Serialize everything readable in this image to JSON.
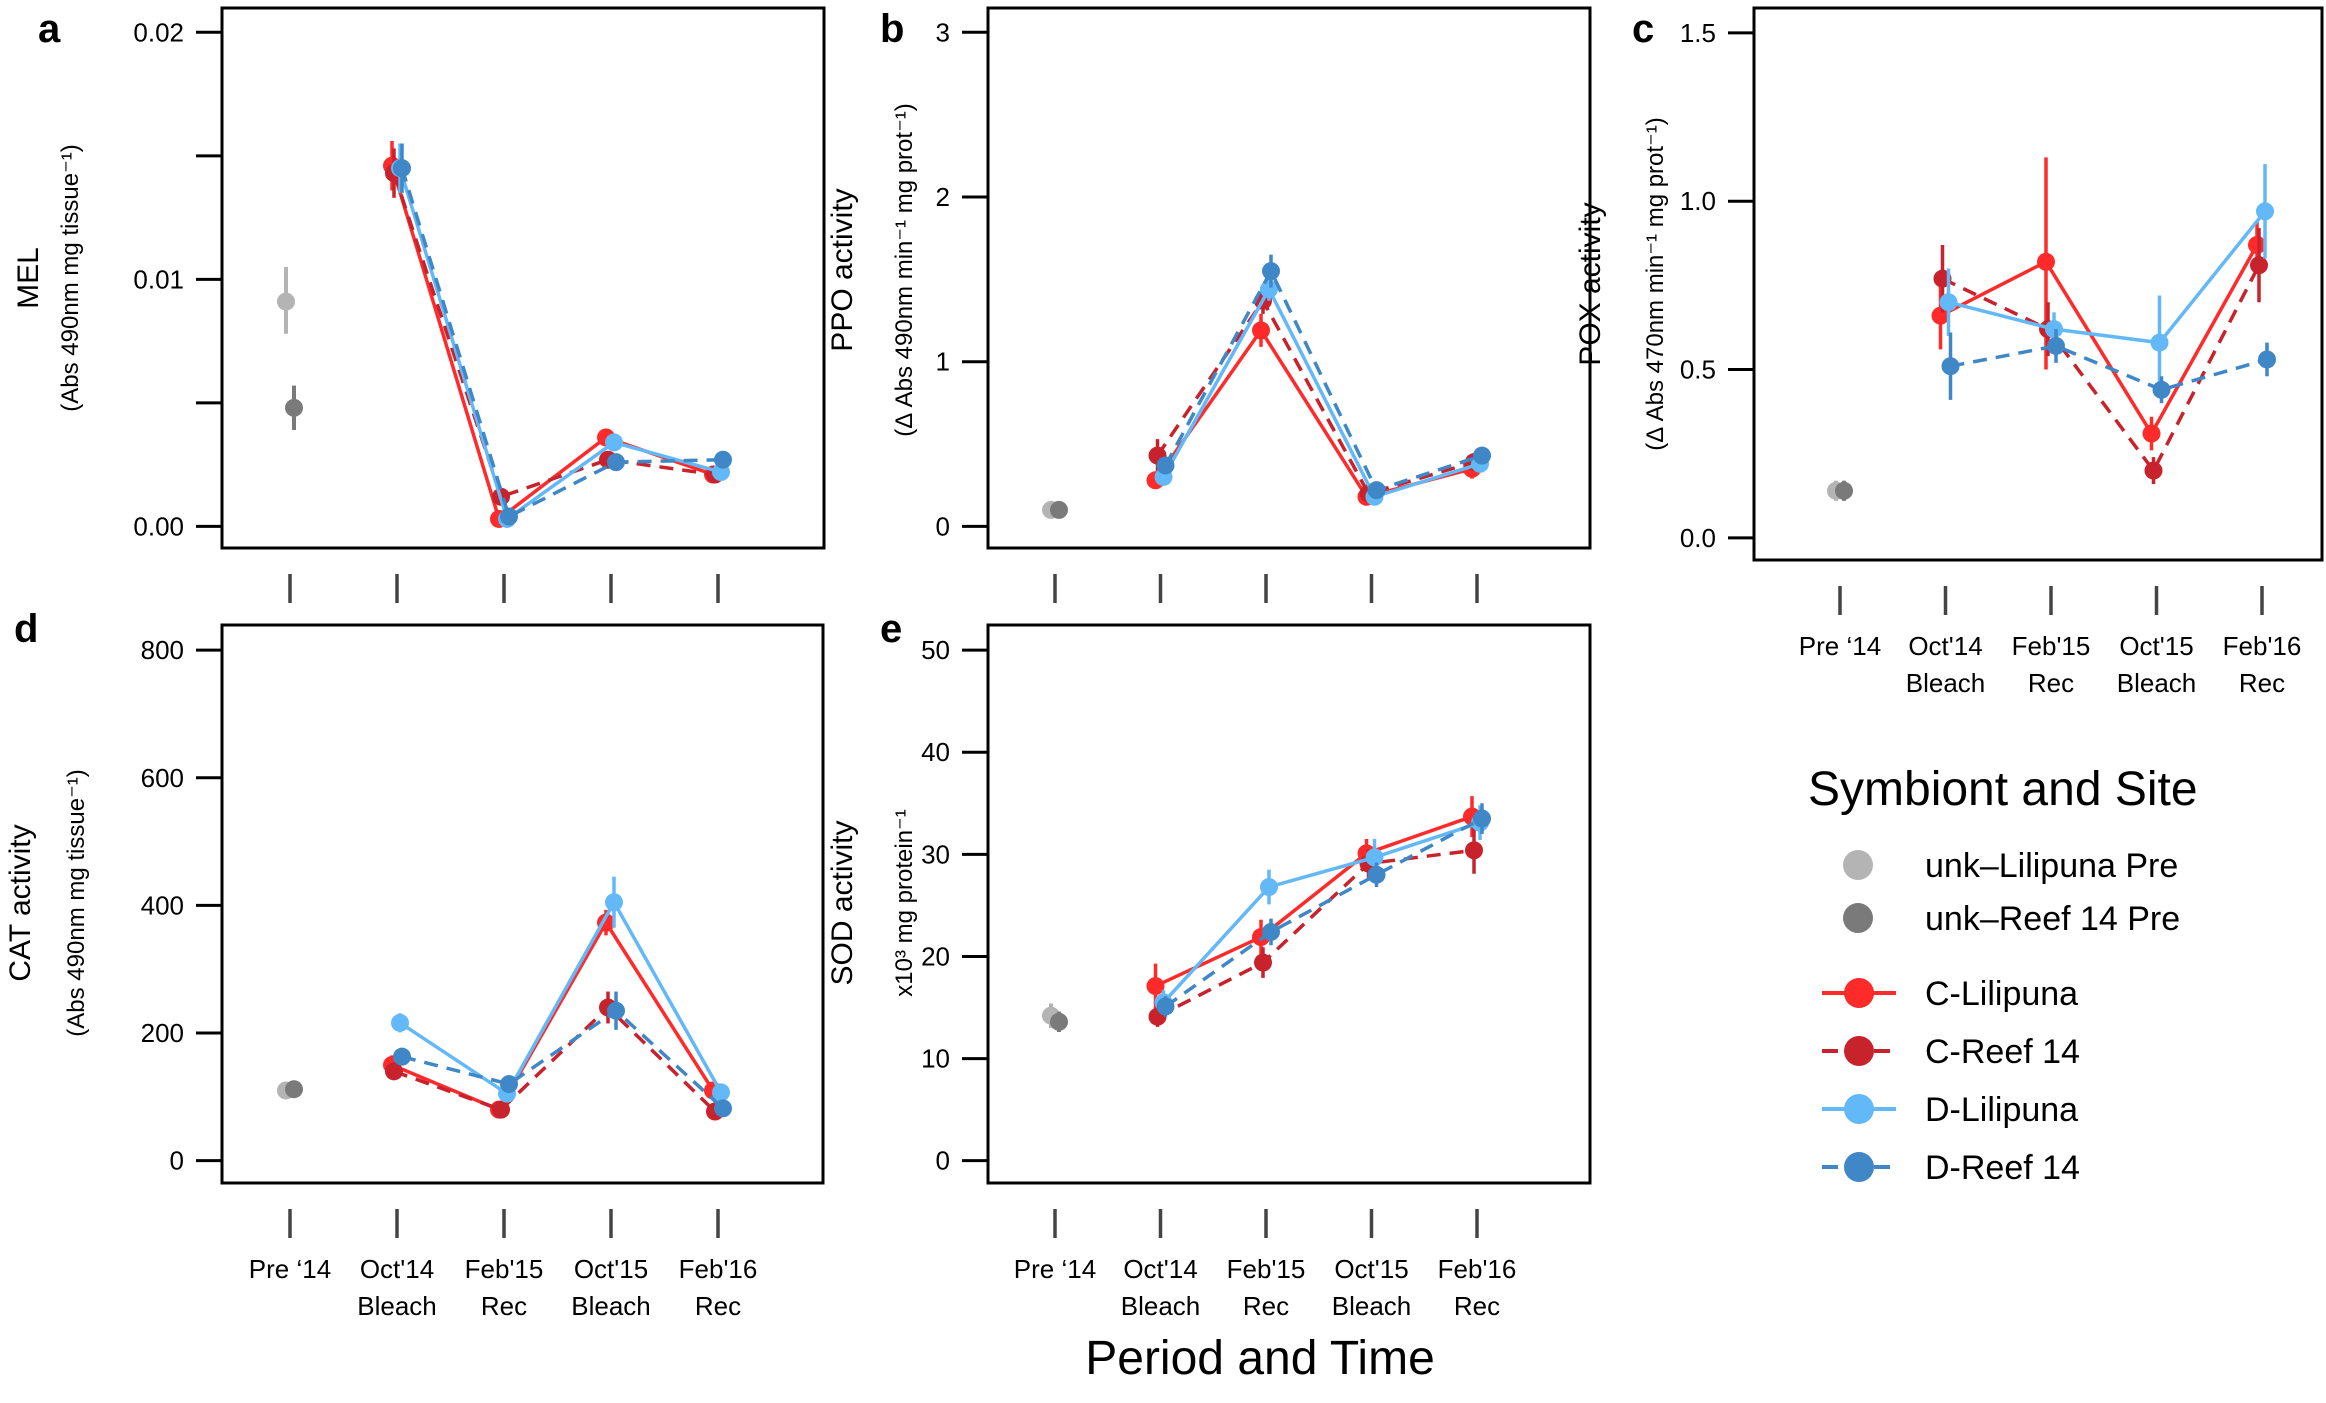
{
  "figure": {
    "xtitle": "Period and Time",
    "legend": {
      "title": "Symbiont and Site",
      "pre_entries": [
        {
          "label": "unk–Lilipuna Pre",
          "color": "#b4b4b4"
        },
        {
          "label": "unk–Reef 14 Pre",
          "color": "#7a7a7a"
        }
      ],
      "series_entries": [
        {
          "label": "C-Lilipuna",
          "color": "#ff2a2a",
          "dashed": false
        },
        {
          "label": "C-Reef 14",
          "color": "#c8232c",
          "dashed": true
        },
        {
          "label": "D-Lilipuna",
          "color": "#63b8f7",
          "dashed": false
        },
        {
          "label": "D-Reef 14",
          "color": "#3f87c6",
          "dashed": true
        }
      ]
    }
  },
  "chart_data": [
    {
      "letter": "a",
      "type": "line",
      "ylabel": "MEL",
      "ylabel_sub": "(Abs 490nm mg tissue⁻¹)",
      "ylim": [
        0,
        0.02
      ],
      "yticks": [
        {
          "value": 0,
          "label": "0.00",
          "show_label": true
        },
        {
          "value": 0.005,
          "label": "",
          "show_label": false
        },
        {
          "value": 0.01,
          "label": "0.01",
          "show_label": true
        },
        {
          "value": 0.015,
          "label": "",
          "show_label": false
        },
        {
          "value": 0.02,
          "label": "0.02",
          "show_label": true
        }
      ],
      "x_labels": [],
      "pre": [
        {
          "name": "unk–Lilipuna Pre",
          "value": 0.0091,
          "lo": 0.0078,
          "hi": 0.0105
        },
        {
          "name": "unk–Reef 14 Pre",
          "value": 0.0048,
          "lo": 0.0039,
          "hi": 0.0057
        }
      ],
      "series": [
        {
          "name": "C-Lilipuna",
          "values": [
            0.0146,
            0.0003,
            0.0036,
            0.0021
          ],
          "lo": [
            0.0136,
            0.0001,
            0.0033,
            0.0019
          ],
          "hi": [
            0.0156,
            0.0005,
            0.0039,
            0.0023
          ]
        },
        {
          "name": "C-Reef 14",
          "values": [
            0.0143,
            0.0012,
            0.0027,
            0.0021
          ],
          "lo": [
            0.0133,
            0.001,
            0.0025,
            0.0019
          ],
          "hi": [
            0.0153,
            0.0014,
            0.0029,
            0.0023
          ]
        },
        {
          "name": "D-Lilipuna",
          "values": [
            0.0145,
            0.0003,
            0.0034,
            0.0022
          ],
          "lo": [
            0.0135,
            0.0001,
            0.0031,
            0.002
          ],
          "hi": [
            0.0155,
            0.0005,
            0.0037,
            0.0024
          ]
        },
        {
          "name": "D-Reef 14",
          "values": [
            0.0145,
            0.0004,
            0.0026,
            0.0027
          ],
          "lo": [
            0.0135,
            0.0002,
            0.0024,
            0.0025
          ],
          "hi": [
            0.0155,
            0.0006,
            0.0028,
            0.0029
          ]
        }
      ]
    },
    {
      "letter": "b",
      "type": "line",
      "ylabel": "PPO activity",
      "ylabel_sub": "(Δ Abs 490nm min⁻¹ mg prot⁻¹)",
      "ylim": [
        0,
        3
      ],
      "yticks": [
        {
          "value": 0,
          "label": "0",
          "show_label": true
        },
        {
          "value": 1,
          "label": "1",
          "show_label": true
        },
        {
          "value": 2,
          "label": "2",
          "show_label": true
        },
        {
          "value": 3,
          "label": "3",
          "show_label": true
        }
      ],
      "x_labels": [],
      "pre": [
        {
          "name": "unk–Lilipuna Pre",
          "value": 0.1,
          "lo": 0.08,
          "hi": 0.12
        },
        {
          "name": "unk–Reef 14 Pre",
          "value": 0.1,
          "lo": 0.08,
          "hi": 0.12
        }
      ],
      "series": [
        {
          "name": "C-Lilipuna",
          "values": [
            0.28,
            1.19,
            0.18,
            0.35
          ],
          "lo": [
            0.25,
            1.09,
            0.15,
            0.29
          ],
          "hi": [
            0.31,
            1.29,
            0.21,
            0.41
          ]
        },
        {
          "name": "C-Reef 14",
          "values": [
            0.43,
            1.37,
            0.2,
            0.39
          ],
          "lo": [
            0.33,
            1.29,
            0.17,
            0.34
          ],
          "hi": [
            0.53,
            1.45,
            0.23,
            0.44
          ]
        },
        {
          "name": "D-Lilipuna",
          "values": [
            0.3,
            1.44,
            0.18,
            0.38
          ],
          "lo": [
            0.27,
            1.37,
            0.15,
            0.34
          ],
          "hi": [
            0.33,
            1.51,
            0.21,
            0.42
          ]
        },
        {
          "name": "D-Reef 14",
          "values": [
            0.37,
            1.55,
            0.22,
            0.43
          ],
          "lo": [
            0.32,
            1.45,
            0.19,
            0.39
          ],
          "hi": [
            0.42,
            1.65,
            0.25,
            0.47
          ]
        }
      ]
    },
    {
      "letter": "c",
      "type": "line",
      "ylabel": "POX activity",
      "ylabel_sub": "(Δ Abs 470nm min⁻¹ mg prot⁻¹)",
      "ylim": [
        0,
        1.5
      ],
      "yticks": [
        {
          "value": 0,
          "label": "0.0",
          "show_label": true
        },
        {
          "value": 0.5,
          "label": "0.5",
          "show_label": true
        },
        {
          "value": 1,
          "label": "1.0",
          "show_label": true
        },
        {
          "value": 1.5,
          "label": "1.5",
          "show_label": true
        }
      ],
      "x_labels": [
        [
          "Pre ‘14"
        ],
        [
          "Oct'14",
          "Bleach"
        ],
        [
          "Feb'15",
          "Rec"
        ],
        [
          "Oct'15",
          "Bleach"
        ],
        [
          "Feb'16",
          "Rec"
        ]
      ],
      "pre": [
        {
          "name": "unk–Lilipuna Pre",
          "value": 0.14,
          "lo": 0.11,
          "hi": 0.17
        },
        {
          "name": "unk–Reef 14 Pre",
          "value": 0.14,
          "lo": 0.11,
          "hi": 0.17
        }
      ],
      "series": [
        {
          "name": "C-Lilipuna",
          "values": [
            0.66,
            0.82,
            0.31,
            0.87
          ],
          "lo": [
            0.56,
            0.5,
            0.26,
            0.8
          ],
          "hi": [
            0.76,
            1.13,
            0.36,
            0.94
          ]
        },
        {
          "name": "C-Reef 14",
          "values": [
            0.77,
            0.62,
            0.2,
            0.81
          ],
          "lo": [
            0.67,
            0.54,
            0.16,
            0.7
          ],
          "hi": [
            0.87,
            0.7,
            0.24,
            0.92
          ]
        },
        {
          "name": "D-Lilipuna",
          "values": [
            0.7,
            0.62,
            0.58,
            0.97
          ],
          "lo": [
            0.6,
            0.57,
            0.44,
            0.83
          ],
          "hi": [
            0.8,
            0.67,
            0.72,
            1.11
          ]
        },
        {
          "name": "D-Reef 14",
          "values": [
            0.51,
            0.57,
            0.44,
            0.53
          ],
          "lo": [
            0.41,
            0.52,
            0.4,
            0.48
          ],
          "hi": [
            0.61,
            0.62,
            0.48,
            0.58
          ]
        }
      ]
    },
    {
      "letter": "d",
      "type": "line",
      "ylabel": "CAT activity",
      "ylabel_sub": "(Abs 490nm mg tissue⁻¹)",
      "ylim": [
        0,
        800
      ],
      "yticks": [
        {
          "value": 0,
          "label": "0",
          "show_label": true
        },
        {
          "value": 200,
          "label": "200",
          "show_label": true
        },
        {
          "value": 400,
          "label": "400",
          "show_label": true
        },
        {
          "value": 600,
          "label": "600",
          "show_label": true
        },
        {
          "value": 800,
          "label": "800",
          "show_label": true
        }
      ],
      "x_labels": [
        [
          "Pre ‘14"
        ],
        [
          "Oct'14",
          "Bleach"
        ],
        [
          "Feb'15",
          "Rec"
        ],
        [
          "Oct'15",
          "Bleach"
        ],
        [
          "Feb'16",
          "Rec"
        ]
      ],
      "pre": [
        {
          "name": "unk–Lilipuna Pre",
          "value": 110,
          "lo": 97,
          "hi": 123
        },
        {
          "name": "unk–Reef 14 Pre",
          "value": 112,
          "lo": 100,
          "hi": 124
        }
      ],
      "series": [
        {
          "name": "C-Lilipuna",
          "values": [
            150,
            80,
            373,
            110
          ],
          "lo": [
            135,
            73,
            353,
            102
          ],
          "hi": [
            165,
            87,
            393,
            118
          ]
        },
        {
          "name": "C-Reef 14",
          "values": [
            140,
            80,
            240,
            77
          ],
          "lo": [
            128,
            73,
            215,
            70
          ],
          "hi": [
            152,
            87,
            265,
            84
          ]
        },
        {
          "name": "D-Lilipuna",
          "values": [
            216,
            105,
            405,
            107
          ],
          "lo": [
            201,
            97,
            365,
            99
          ],
          "hi": [
            231,
            113,
            445,
            115
          ]
        },
        {
          "name": "D-Reef 14",
          "values": [
            163,
            120,
            235,
            82
          ],
          "lo": [
            151,
            110,
            205,
            75
          ],
          "hi": [
            175,
            130,
            265,
            89
          ]
        }
      ]
    },
    {
      "letter": "e",
      "type": "line",
      "ylabel": "SOD activity",
      "ylabel_sub": "x10³ mg protein⁻¹",
      "ylim": [
        0,
        50
      ],
      "yticks": [
        {
          "value": 0,
          "label": "0",
          "show_label": true
        },
        {
          "value": 10,
          "label": "10",
          "show_label": true
        },
        {
          "value": 20,
          "label": "20",
          "show_label": true
        },
        {
          "value": 30,
          "label": "30",
          "show_label": true
        },
        {
          "value": 40,
          "label": "40",
          "show_label": true
        },
        {
          "value": 50,
          "label": "50",
          "show_label": true
        }
      ],
      "x_labels": [
        [
          "Pre ‘14"
        ],
        [
          "Oct'14",
          "Bleach"
        ],
        [
          "Feb'15",
          "Rec"
        ],
        [
          "Oct'15",
          "Bleach"
        ],
        [
          "Feb'16",
          "Rec"
        ]
      ],
      "pre": [
        {
          "name": "unk–Lilipuna Pre",
          "value": 14.2,
          "lo": 13,
          "hi": 15.4
        },
        {
          "name": "unk–Reef 14 Pre",
          "value": 13.6,
          "lo": 12.6,
          "hi": 14.6
        }
      ],
      "series": [
        {
          "name": "C-Lilipuna",
          "values": [
            17.1,
            21.9,
            30.1,
            33.7
          ],
          "lo": [
            14.9,
            20.2,
            28.7,
            31.7
          ],
          "hi": [
            19.3,
            23.6,
            31.5,
            35.7
          ]
        },
        {
          "name": "C-Reef 14",
          "values": [
            14.1,
            19.4,
            29.1,
            30.4
          ],
          "lo": [
            13.1,
            17.9,
            27.7,
            28.1
          ],
          "hi": [
            15.1,
            20.9,
            30.5,
            32.7
          ]
        },
        {
          "name": "D-Lilipuna",
          "values": [
            15.5,
            26.8,
            29.7,
            33.1
          ],
          "lo": [
            14.3,
            25.1,
            27.9,
            31.4
          ],
          "hi": [
            16.7,
            28.5,
            31.5,
            34.8
          ]
        },
        {
          "name": "D-Reef 14",
          "values": [
            15.1,
            22.4,
            28,
            33.5
          ],
          "lo": [
            14.1,
            21.1,
            26.8,
            32
          ],
          "hi": [
            16.1,
            23.7,
            29.2,
            35
          ]
        }
      ]
    }
  ]
}
